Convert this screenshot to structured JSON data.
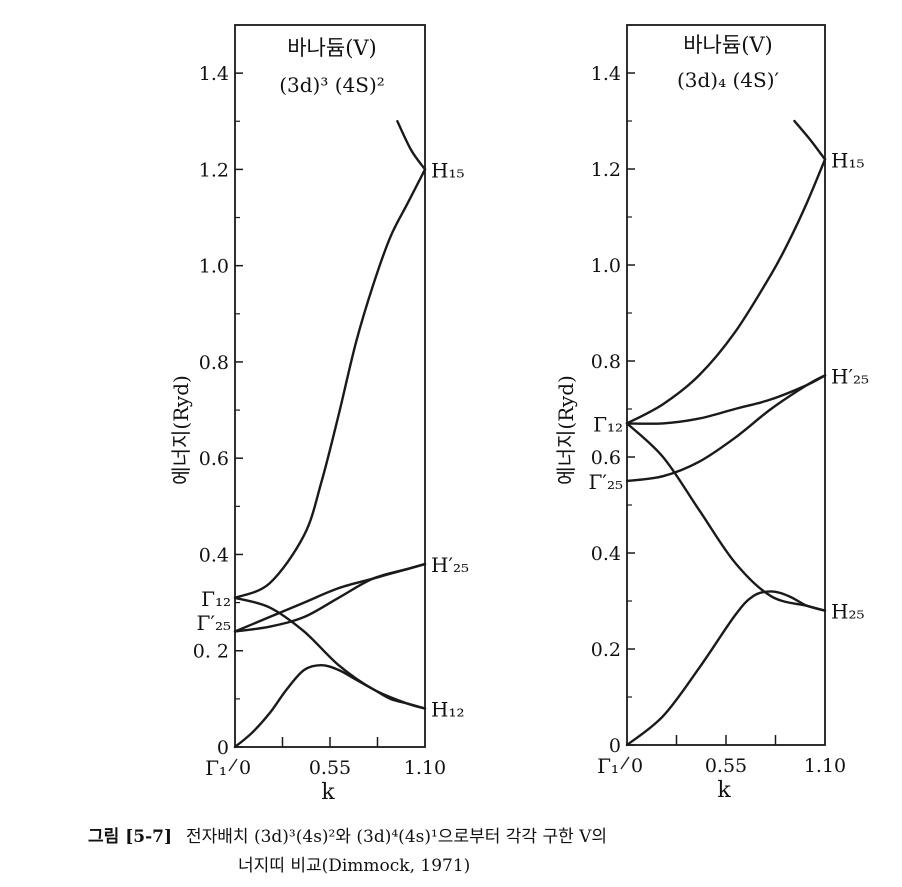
{
  "chart_data": [
    {
      "type": "line",
      "title": "바나듐(V)",
      "subtitle": "(3d)³ (4S)²",
      "xlabel": "k",
      "ylabel": "에너지(Ryd)",
      "xlim": [
        0,
        1.1
      ],
      "ylim": [
        0,
        1.5
      ],
      "xticks": [
        0,
        0.55,
        1.1
      ],
      "xticklabels": [
        "0",
        "0.55",
        "1.10"
      ],
      "yticks": [
        0,
        0.2,
        0.4,
        0.6,
        0.8,
        1.0,
        1.2,
        1.4
      ],
      "yticklabels": [
        "0",
        "0. 2",
        "0.4",
        "0.6",
        "0.8",
        "1.0",
        "1.2",
        "1.4"
      ],
      "point_labels": [
        {
          "text": "Γ₁",
          "x": 0,
          "y": 0,
          "side": "below-left"
        },
        {
          "text": "Γ₁₂",
          "x": 0,
          "y": 0.31,
          "side": "left"
        },
        {
          "text": "Γ′₂₅",
          "x": 0,
          "y": 0.26,
          "side": "left"
        },
        {
          "text": "H₁₅",
          "x": 1.1,
          "y": 1.2,
          "side": "right"
        },
        {
          "text": "H′₂₅",
          "x": 1.1,
          "y": 0.38,
          "side": "right"
        },
        {
          "text": "H₁₂",
          "x": 1.1,
          "y": 0.08,
          "side": "right"
        }
      ],
      "series": [
        {
          "x": [
            0,
            0.2,
            0.4,
            0.5,
            0.6,
            0.7,
            0.8,
            0.9,
            1.0,
            1.1
          ],
          "values": [
            0.31,
            0.34,
            0.44,
            0.55,
            0.69,
            0.84,
            0.96,
            1.06,
            1.13,
            1.2
          ]
        },
        {
          "x": [
            0.94,
            1.02,
            1.1
          ],
          "values": [
            1.3,
            1.24,
            1.2
          ]
        },
        {
          "x": [
            0,
            0.2,
            0.4,
            0.6,
            0.8,
            1.0,
            1.1
          ],
          "values": [
            0.31,
            0.29,
            0.24,
            0.17,
            0.12,
            0.09,
            0.08
          ]
        },
        {
          "x": [
            0,
            0.2,
            0.4,
            0.6,
            0.8,
            1.0,
            1.1
          ],
          "values": [
            0.24,
            0.27,
            0.3,
            0.33,
            0.35,
            0.37,
            0.38
          ]
        },
        {
          "x": [
            0,
            0.2,
            0.4,
            0.6,
            0.8,
            1.0,
            1.1
          ],
          "values": [
            0.24,
            0.25,
            0.27,
            0.31,
            0.35,
            0.37,
            0.38
          ]
        },
        {
          "x": [
            0,
            0.1,
            0.2,
            0.3,
            0.4,
            0.5,
            0.6,
            0.7,
            0.8,
            0.9,
            1.0,
            1.1
          ],
          "values": [
            0,
            0.03,
            0.07,
            0.12,
            0.16,
            0.17,
            0.16,
            0.14,
            0.12,
            0.1,
            0.09,
            0.08
          ]
        }
      ]
    },
    {
      "type": "line",
      "title": "바나듐(V)",
      "subtitle": "(3d)₄ (4S)′",
      "xlabel": "k",
      "ylabel": "에너지(Ryd)",
      "xlim": [
        0,
        1.1
      ],
      "ylim": [
        0,
        1.5
      ],
      "xticks": [
        0,
        0.55,
        1.1
      ],
      "xticklabels": [
        "0",
        "0.55",
        "1.10"
      ],
      "yticks": [
        0,
        0.2,
        0.4,
        0.6,
        0.8,
        1.0,
        1.2,
        1.4
      ],
      "yticklabels": [
        "0",
        "0.2",
        "0.4",
        "0.6",
        "0.8",
        "1.0",
        "1.2",
        "1.4"
      ],
      "point_labels": [
        {
          "text": "Γ₁",
          "x": 0,
          "y": 0,
          "side": "below-left"
        },
        {
          "text": "Γ₁₂",
          "x": 0,
          "y": 0.67,
          "side": "left"
        },
        {
          "text": "Γ′₂₅",
          "x": 0,
          "y": 0.55,
          "side": "left"
        },
        {
          "text": "H₁₅",
          "x": 1.1,
          "y": 1.22,
          "side": "right"
        },
        {
          "text": "H′₂₅",
          "x": 1.1,
          "y": 0.77,
          "side": "right"
        },
        {
          "text": "H₂₅",
          "x": 1.1,
          "y": 0.28,
          "side": "right"
        }
      ],
      "series": [
        {
          "x": [
            0,
            0.2,
            0.4,
            0.6,
            0.8,
            0.9,
            1.0,
            1.1
          ],
          "values": [
            0.67,
            0.71,
            0.77,
            0.86,
            0.98,
            1.05,
            1.13,
            1.22
          ]
        },
        {
          "x": [
            0.93,
            1.02,
            1.1
          ],
          "values": [
            1.3,
            1.26,
            1.22
          ]
        },
        {
          "x": [
            0,
            0.2,
            0.4,
            0.6,
            0.8,
            1.0,
            1.1
          ],
          "values": [
            0.67,
            0.6,
            0.49,
            0.38,
            0.31,
            0.29,
            0.28
          ]
        },
        {
          "x": [
            0,
            0.2,
            0.4,
            0.6,
            0.8,
            1.0,
            1.1
          ],
          "values": [
            0.67,
            0.67,
            0.68,
            0.7,
            0.72,
            0.75,
            0.77
          ]
        },
        {
          "x": [
            0,
            0.2,
            0.4,
            0.6,
            0.8,
            1.0,
            1.1
          ],
          "values": [
            0.55,
            0.56,
            0.59,
            0.64,
            0.7,
            0.75,
            0.77
          ]
        },
        {
          "x": [
            0,
            0.2,
            0.4,
            0.6,
            0.7,
            0.8,
            0.9,
            1.0,
            1.1
          ],
          "values": [
            0,
            0.06,
            0.16,
            0.27,
            0.31,
            0.32,
            0.31,
            0.29,
            0.28
          ]
        }
      ]
    }
  ],
  "caption": {
    "number": "그림 [5-7]",
    "line1": "전자배치 (3d)³(4s)²와 (3d)⁴(4s)¹으로부터 각각 구한 V의",
    "line2": "너지띠 비교(Dimmock, 1971)"
  },
  "colors": {
    "line": "#1a1a1a",
    "text": "#111111",
    "background": "#ffffff"
  }
}
